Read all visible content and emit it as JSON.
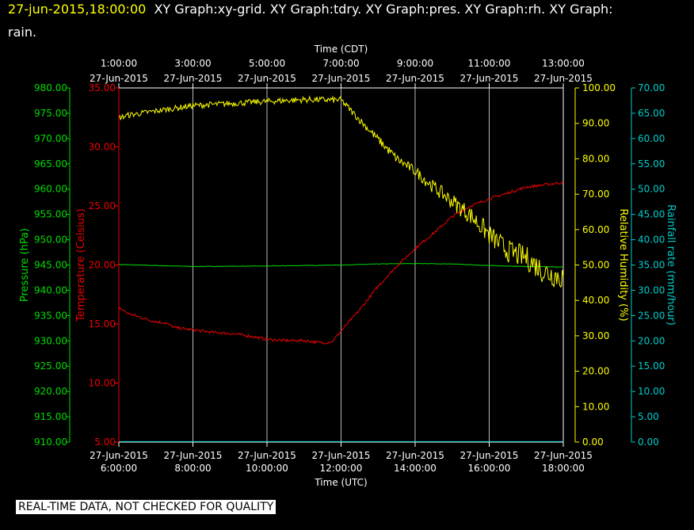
{
  "header": {
    "timestamp": "27-jun-2015,18:00:00",
    "graphs_line1": "XY Graph:xy-grid.  XY Graph:tdry.  XY Graph:pres.  XY Graph:rh.  XY Graph:",
    "graphs_line2": "rain."
  },
  "footer": {
    "quality_note": "REAL-TIME DATA, NOT CHECKED FOR QUALITY"
  },
  "colors": {
    "pressure": "#00dd00",
    "temperature": "#ee0000",
    "humidity": "#ffff00",
    "rain": "#00cccc",
    "grid": "#b8b8b8",
    "axis": "#ffffff"
  },
  "chart_data": {
    "type": "line",
    "x_axis_top": {
      "title": "Time (CDT)",
      "ticks": [
        {
          "time": "1:00:00",
          "date": "27-Jun-2015"
        },
        {
          "time": "3:00:00",
          "date": "27-Jun-2015"
        },
        {
          "time": "5:00:00",
          "date": "27-Jun-2015"
        },
        {
          "time": "7:00:00",
          "date": "27-Jun-2015"
        },
        {
          "time": "9:00:00",
          "date": "27-Jun-2015"
        },
        {
          "time": "11:00:00",
          "date": "27-Jun-2015"
        },
        {
          "time": "13:00:00",
          "date": "27-Jun-2015"
        }
      ]
    },
    "x_axis_bottom": {
      "title": "Time (UTC)",
      "range": [
        "27-Jun-2015 06:00:00",
        "27-Jun-2015 18:00:00"
      ],
      "ticks": [
        {
          "time": "6:00:00",
          "date": "27-Jun-2015"
        },
        {
          "time": "8:00:00",
          "date": "27-Jun-2015"
        },
        {
          "time": "10:00:00",
          "date": "27-Jun-2015"
        },
        {
          "time": "12:00:00",
          "date": "27-Jun-2015"
        },
        {
          "time": "14:00:00",
          "date": "27-Jun-2015"
        },
        {
          "time": "16:00:00",
          "date": "27-Jun-2015"
        },
        {
          "time": "18:00:00",
          "date": "27-Jun-2015"
        }
      ]
    },
    "axes": {
      "pressure": {
        "label": "Pressure (hPa)",
        "range": [
          910,
          980
        ],
        "ticks": [
          "910.00",
          "915.00",
          "920.00",
          "925.00",
          "930.00",
          "935.00",
          "940.00",
          "945.00",
          "950.00",
          "955.00",
          "960.00",
          "965.00",
          "970.00",
          "975.00",
          "980.00"
        ]
      },
      "temperature": {
        "label": "Temperature (Celsius)",
        "range": [
          5,
          35
        ],
        "ticks": [
          "5.00",
          "10.00",
          "15.00",
          "20.00",
          "25.00",
          "30.00",
          "35.00"
        ]
      },
      "humidity": {
        "label": "Relative Humidity (%)",
        "range": [
          0,
          100
        ],
        "ticks": [
          "0.00",
          "10.00",
          "20.00",
          "30.00",
          "40.00",
          "50.00",
          "60.00",
          "70.00",
          "80.00",
          "90.00",
          "100.00"
        ]
      },
      "rain": {
        "label": "Rainfall rate (mm/hour)",
        "range": [
          0,
          70
        ],
        "ticks": [
          "0.00",
          "5.00",
          "10.00",
          "15.00",
          "20.00",
          "25.00",
          "30.00",
          "35.00",
          "40.00",
          "45.00",
          "50.00",
          "55.00",
          "60.00",
          "65.00",
          "70.00"
        ]
      }
    },
    "grid": true,
    "series": [
      {
        "axis": "pressure",
        "color": "#00dd00",
        "noise": 0.05,
        "x": [
          "06:00",
          "08:00",
          "10:00",
          "12:00",
          "13:00",
          "14:00",
          "15:00",
          "16:00",
          "17:00",
          "18:00"
        ],
        "values": [
          945.1,
          944.7,
          944.8,
          945.0,
          945.2,
          945.3,
          945.2,
          944.9,
          944.7,
          944.6
        ]
      },
      {
        "axis": "temperature",
        "color": "#ee0000",
        "noise": 0.12,
        "x": [
          "06:00",
          "06:15",
          "06:45",
          "07:00",
          "07:15",
          "07:30",
          "08:00",
          "08:30",
          "09:00",
          "09:30",
          "10:00",
          "10:30",
          "11:00",
          "11:30",
          "11:45",
          "12:00",
          "12:30",
          "13:00",
          "13:30",
          "14:00",
          "14:30",
          "15:00",
          "15:30",
          "16:00",
          "16:30",
          "17:00",
          "17:30",
          "18:00"
        ],
        "values": [
          16.4,
          15.9,
          15.4,
          15.2,
          15.1,
          14.7,
          14.5,
          14.3,
          14.2,
          14.0,
          13.7,
          13.6,
          13.6,
          13.4,
          13.5,
          14.4,
          16.2,
          18.2,
          19.9,
          21.4,
          22.7,
          24.1,
          25.0,
          25.6,
          26.1,
          26.6,
          26.8,
          27.0
        ]
      },
      {
        "axis": "humidity",
        "color": "#ffff00",
        "noise_bands": [
          [
            "06:00",
            0.8
          ],
          [
            "12:00",
            0.9
          ],
          [
            "14:00",
            1.5
          ],
          [
            "15:00",
            2.3
          ],
          [
            "16:00",
            3.0
          ],
          [
            "17:00",
            3.4
          ],
          [
            "18:00",
            3.8
          ]
        ],
        "x": [
          "06:00",
          "06:15",
          "07:00",
          "08:00",
          "09:00",
          "10:00",
          "11:00",
          "12:00",
          "12:30",
          "13:00",
          "13:30",
          "14:00",
          "14:30",
          "15:00",
          "15:30",
          "16:00",
          "16:30",
          "17:00",
          "17:30",
          "18:00"
        ],
        "values": [
          91.5,
          92.3,
          93.5,
          95.0,
          95.6,
          96.2,
          96.7,
          96.6,
          91.0,
          85.5,
          80.0,
          76.5,
          72.0,
          68.0,
          64.0,
          58.5,
          54.0,
          52.0,
          48.0,
          46.5
        ]
      },
      {
        "axis": "rain",
        "color": "#00cccc",
        "noise": 0,
        "x": [
          "06:00",
          "18:00"
        ],
        "values": [
          0.1,
          0.1
        ]
      }
    ]
  }
}
